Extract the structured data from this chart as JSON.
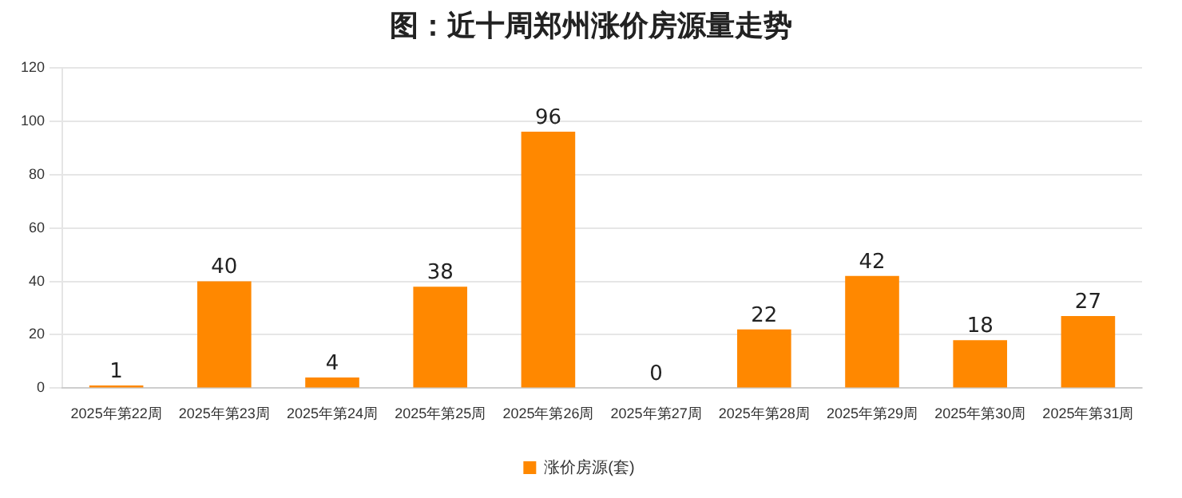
{
  "chart_data": {
    "type": "bar",
    "title": "图：近十周郑州涨价房源量走势",
    "categories": [
      "2025年第22周",
      "2025年第23周",
      "2025年第24周",
      "2025年第25周",
      "2025年第26周",
      "2025年第27周",
      "2025年第28周",
      "2025年第29周",
      "2025年第30周",
      "2025年第31周"
    ],
    "series": [
      {
        "name": "涨价房源(套)",
        "color": "#ff8800",
        "values": [
          1,
          40,
          4,
          38,
          96,
          0,
          22,
          42,
          18,
          27
        ]
      }
    ],
    "ylim": [
      0,
      120
    ],
    "yticks": [
      0,
      20,
      40,
      60,
      80,
      100,
      120
    ],
    "grid": "y",
    "legend": "bottom",
    "data_labels": true
  }
}
